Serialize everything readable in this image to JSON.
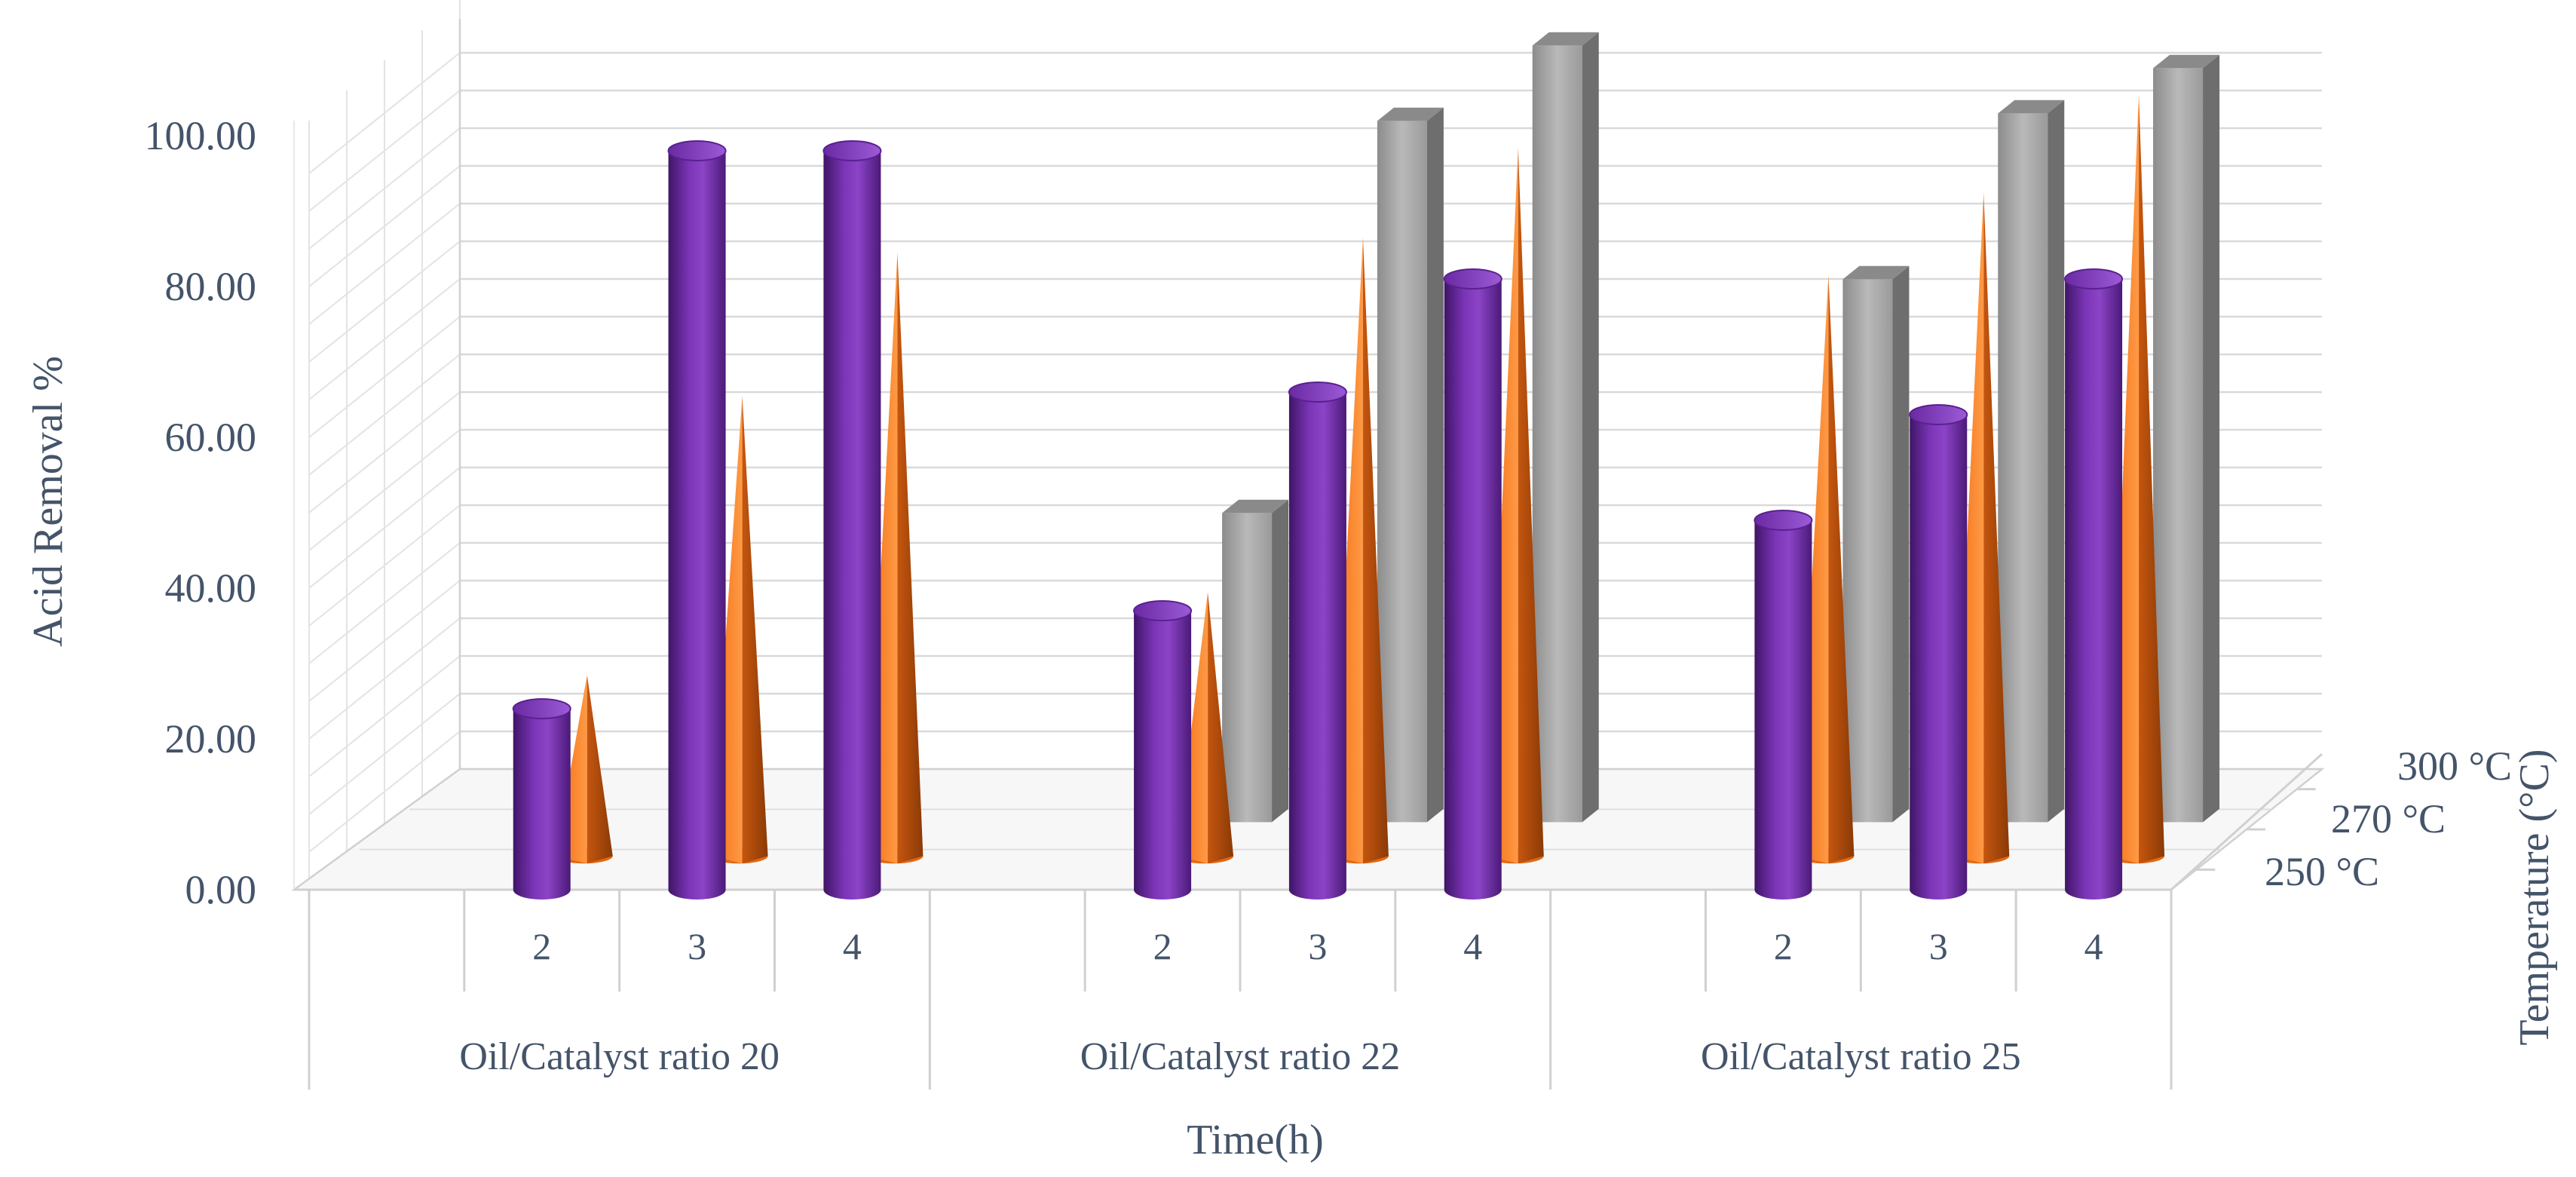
{
  "chart_data": {
    "type": "bar",
    "subtype": "3d-clustered",
    "title": "",
    "ylabel": "Acid Removal %",
    "xlabel": "Time(h)",
    "zlabel": "Temperature (°C)",
    "ylim": [
      0,
      100
    ],
    "yticks": [
      "0.00",
      "20.00",
      "40.00",
      "60.00",
      "80.00",
      "100.00"
    ],
    "groups": [
      {
        "label": "Oil/Catalyst ratio 20",
        "times": [
          "2",
          "3",
          "4"
        ]
      },
      {
        "label": "Oil/Catalyst ratio 22",
        "times": [
          "2",
          "3",
          "4"
        ]
      },
      {
        "label": "Oil/Catalyst ratio 25",
        "times": [
          "2",
          "3",
          "4"
        ]
      }
    ],
    "series": [
      {
        "name": "250 °C",
        "shape": "cylinder",
        "color": "#7030a0",
        "values": [
          24,
          98,
          98,
          37,
          66,
          81,
          49,
          63,
          81
        ]
      },
      {
        "name": "270 °C",
        "shape": "cone",
        "color": "#ff7f27",
        "values": [
          24,
          61,
          80,
          35,
          82,
          94,
          77,
          88,
          101
        ]
      },
      {
        "name": "300 °C",
        "shape": "box",
        "color": "#a6a6a6",
        "values": [
          null,
          null,
          null,
          41,
          93,
          103,
          72,
          94,
          100
        ]
      }
    ]
  }
}
